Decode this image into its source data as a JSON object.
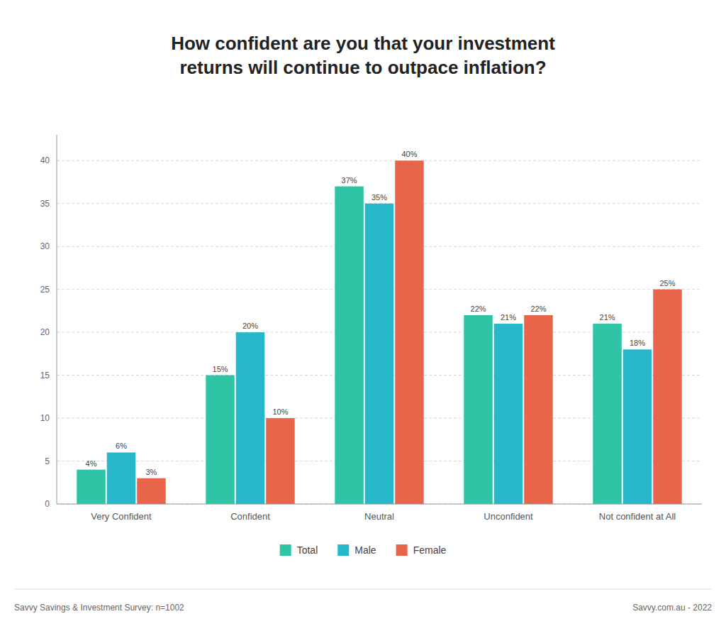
{
  "chart_data": {
    "type": "bar",
    "title": "How confident are you that your investment\nreturns will continue to outpace inflation?",
    "categories": [
      "Very Confident",
      "Confident",
      "Neutral",
      "Unconfident",
      "Not confident at All"
    ],
    "series": [
      {
        "name": "Total",
        "color": "#2ec4a5",
        "values": [
          4,
          15,
          37,
          22,
          21
        ],
        "value_labels": [
          "4%",
          "15%",
          "37%",
          "22%",
          "21%"
        ]
      },
      {
        "name": "Male",
        "color": "#26b8c8",
        "values": [
          6,
          20,
          35,
          21,
          18
        ],
        "value_labels": [
          "6%",
          "20%",
          "35%",
          "21%",
          "18%"
        ]
      },
      {
        "name": "Female",
        "color": "#e8644a",
        "values": [
          3,
          10,
          40,
          22,
          25
        ],
        "value_labels": [
          "3%",
          "10%",
          "40%",
          "22%",
          "25%"
        ]
      }
    ],
    "ylim": [
      0,
      43
    ],
    "yticks": [
      0,
      5,
      10,
      15,
      20,
      25,
      30,
      35,
      40
    ],
    "grid": true,
    "data_labels": true,
    "legend": "bottom",
    "annotations": [
      "Savvy Savings & Investment Survey: n=1002",
      "Savvy.com.au - 2022"
    ]
  }
}
